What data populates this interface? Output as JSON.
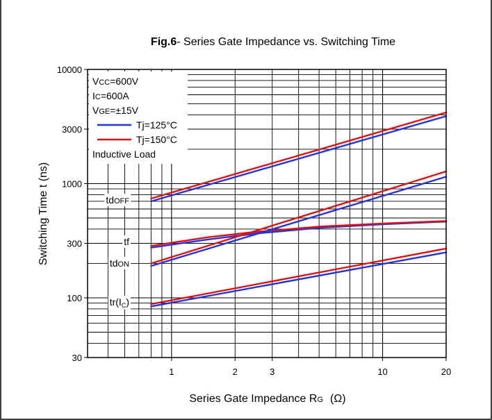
{
  "chart_data": {
    "type": "line",
    "title_bold": "Fig.6",
    "title_rest": "- Series Gate Impedance vs. Switching Time",
    "xlabel": {
      "main": "Series Gate Impedance R",
      "sub": "G",
      "unit": "(Ω)"
    },
    "ylabel": "Switching Time t  (ns)",
    "x_scale": "log",
    "y_scale": "log",
    "xlim": [
      0.4,
      20
    ],
    "ylim": [
      30,
      10000
    ],
    "x_ticks": [
      {
        "value": 1,
        "label": "1"
      },
      {
        "value": 2,
        "label": "2"
      },
      {
        "value": 3,
        "label": "3"
      },
      {
        "value": 10,
        "label": "10"
      },
      {
        "value": 20,
        "label": "20"
      }
    ],
    "y_ticks": [
      {
        "value": 30,
        "label": "30"
      },
      {
        "value": 100,
        "label": "100"
      },
      {
        "value": 300,
        "label": "300"
      },
      {
        "value": 1000,
        "label": "1000"
      },
      {
        "value": 3000,
        "label": "3000"
      },
      {
        "value": 10000,
        "label": "10000"
      }
    ],
    "grid": true,
    "conditions": [
      {
        "main": "V",
        "sub": "CC",
        "rest": "=600V"
      },
      {
        "main": "I",
        "sub": "C",
        "rest": "=600A"
      },
      {
        "main": "V",
        "sub": "GE",
        "rest": "=±15V"
      }
    ],
    "legend_position": "top-left",
    "legend": [
      {
        "label": "Tj=125°C",
        "color": "#2233dd"
      },
      {
        "label": "Tj=150°C",
        "color": "#dd1111"
      }
    ],
    "load_note": "Inductive Load",
    "curves": [
      {
        "label": "tdOFF",
        "label_main": "td",
        "label_sub": "OFF",
        "label_tail": "",
        "x": [
          0.8,
          20
        ],
        "series": [
          {
            "name": "Tj=125°C",
            "y": [
              700,
              3900
            ]
          },
          {
            "name": "Tj=150°C",
            "y": [
              740,
              4200
            ]
          }
        ]
      },
      {
        "label": "tf",
        "label_main": "tf",
        "label_sub": "",
        "label_tail": "",
        "x": [
          0.8,
          1.5,
          2.5,
          5,
          10,
          20
        ],
        "series": [
          {
            "name": "Tj=125°C",
            "y": [
              275,
              325,
              365,
              410,
              440,
              465
            ]
          },
          {
            "name": "Tj=150°C",
            "y": [
              285,
              340,
              378,
              420,
              448,
              470
            ]
          }
        ]
      },
      {
        "label": "tdON",
        "label_main": "td",
        "label_sub": "ON",
        "label_tail": "",
        "x": [
          0.8,
          20
        ],
        "series": [
          {
            "name": "Tj=125°C",
            "y": [
              190,
              1150
            ]
          },
          {
            "name": "Tj=150°C",
            "y": [
              200,
              1280
            ]
          }
        ]
      },
      {
        "label": "tr(IC)",
        "label_main": "tr(I",
        "label_sub": "C",
        "label_tail": ")",
        "x": [
          0.8,
          20
        ],
        "series": [
          {
            "name": "Tj=125°C",
            "y": [
              84,
              250
            ]
          },
          {
            "name": "Tj=150°C",
            "y": [
              88,
              270
            ]
          }
        ]
      }
    ]
  }
}
